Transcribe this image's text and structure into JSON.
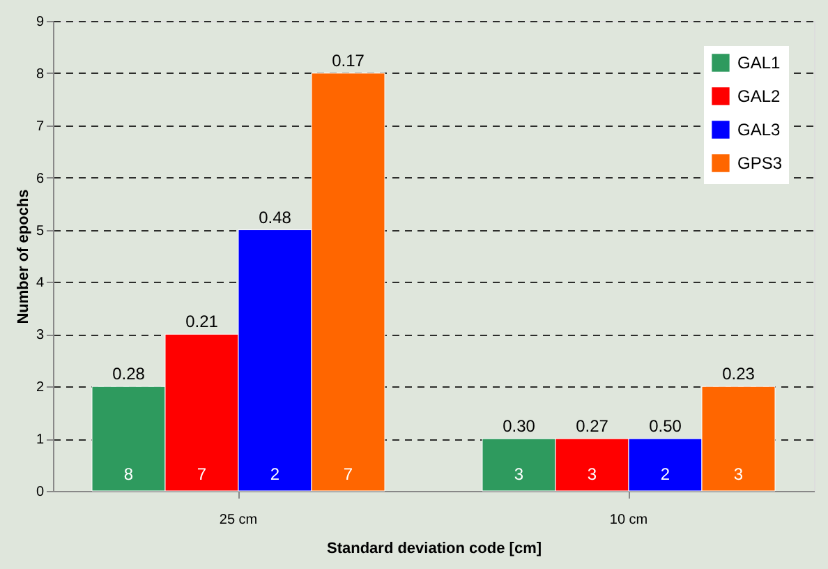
{
  "chart_data": {
    "type": "bar",
    "xlabel": "Standard deviation code [cm]",
    "ylabel": "Number of epochs",
    "categories": [
      "25 cm",
      "10 cm"
    ],
    "series": [
      {
        "name": "GAL1",
        "color": "#2e9a5e",
        "values": [
          2,
          1
        ]
      },
      {
        "name": "GAL2",
        "color": "#ff0000",
        "values": [
          3,
          1
        ]
      },
      {
        "name": "GAL3",
        "color": "#0000ff",
        "values": [
          5,
          1
        ]
      },
      {
        "name": "GPS3",
        "color": "#ff6600",
        "values": [
          8,
          2
        ]
      }
    ],
    "annotations": [
      "0.28",
      "0.21",
      "0.48",
      "0.17",
      "0.30",
      "0.27",
      "0.50",
      "0.23",
      "8",
      "7",
      "2",
      "7",
      "3",
      "3",
      "2",
      "3"
    ],
    "ylim": [
      0,
      9
    ],
    "yticks": [
      0,
      1,
      2,
      3,
      4,
      5,
      6,
      7,
      8,
      9
    ],
    "grid": "y",
    "legend": "top right"
  }
}
